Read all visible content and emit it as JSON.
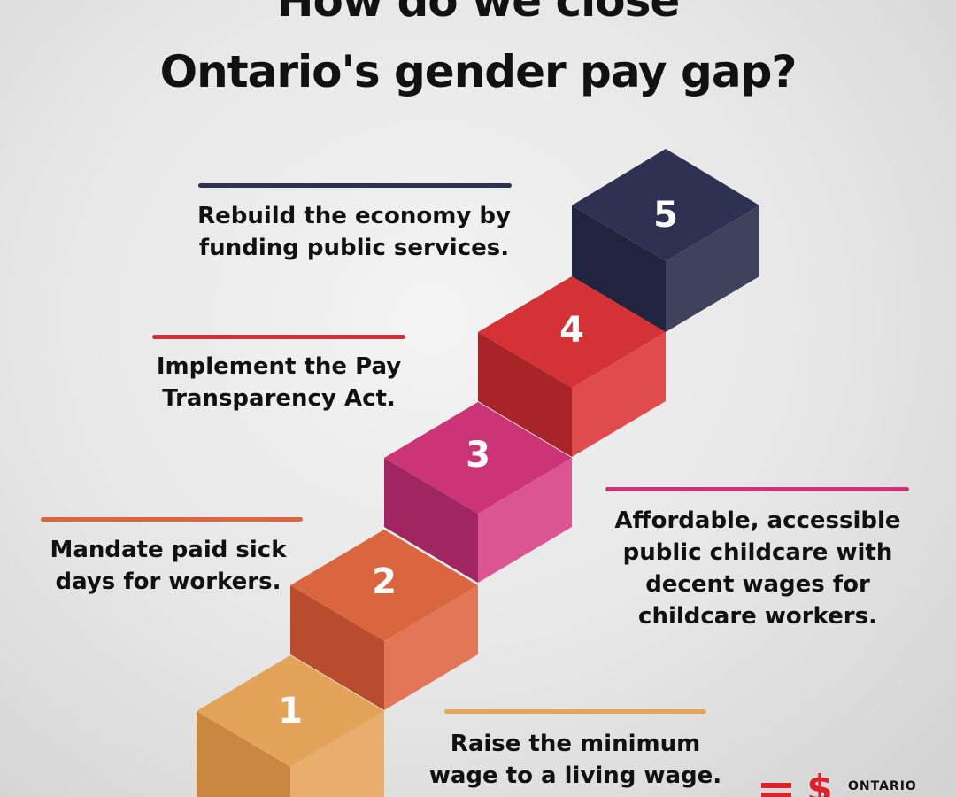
{
  "title": {
    "line1": "How do we close",
    "line2": "Ontario's gender pay gap?"
  },
  "steps": [
    {
      "number": "1",
      "text_lines": [
        "Raise the minimum",
        "wage to a living wage."
      ],
      "color": "#e5a457"
    },
    {
      "number": "2",
      "text_lines": [
        "Mandate paid sick",
        "days for workers."
      ],
      "color": "#d9663f"
    },
    {
      "number": "3",
      "text_lines": [
        "Affordable, accessible",
        "public childcare with",
        "decent wages for",
        "childcare workers."
      ],
      "color": "#cc3477"
    },
    {
      "number": "4",
      "text_lines": [
        "Implement the Pay",
        "Transparency Act."
      ],
      "color": "#d53237"
    },
    {
      "number": "5",
      "text_lines": [
        "Rebuild the economy by",
        "funding public services."
      ],
      "color": "#2f3152"
    }
  ],
  "logo": {
    "text": "ONTARIO",
    "icon": "equal-pay-logo-icon",
    "color": "#e0202a"
  }
}
